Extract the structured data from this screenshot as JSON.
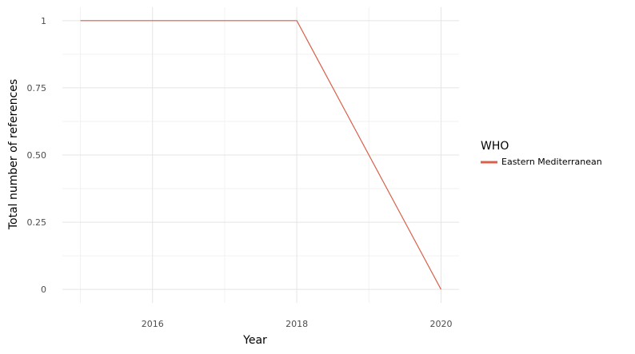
{
  "chart_data": {
    "type": "line",
    "xlabel": "Year",
    "ylabel": "Total number of references",
    "x": [
      2015,
      2018,
      2020
    ],
    "series": [
      {
        "name": "Eastern Mediterranean",
        "values": [
          1,
          1,
          0
        ],
        "color": "#d9604a"
      }
    ],
    "xticks": [
      2016,
      2018,
      2020
    ],
    "xtick_labels": [
      "2016",
      "2018",
      "2020"
    ],
    "yticks": [
      0,
      0.25,
      0.5,
      0.75,
      1
    ],
    "ytick_labels": [
      "0",
      "0.25",
      "0.50",
      "0.75",
      "1"
    ],
    "xlim": [
      2014.75,
      2020.25
    ],
    "ylim": [
      -0.05,
      1.05
    ],
    "grid": true,
    "legend": {
      "title": "WHO",
      "position": "right"
    }
  }
}
